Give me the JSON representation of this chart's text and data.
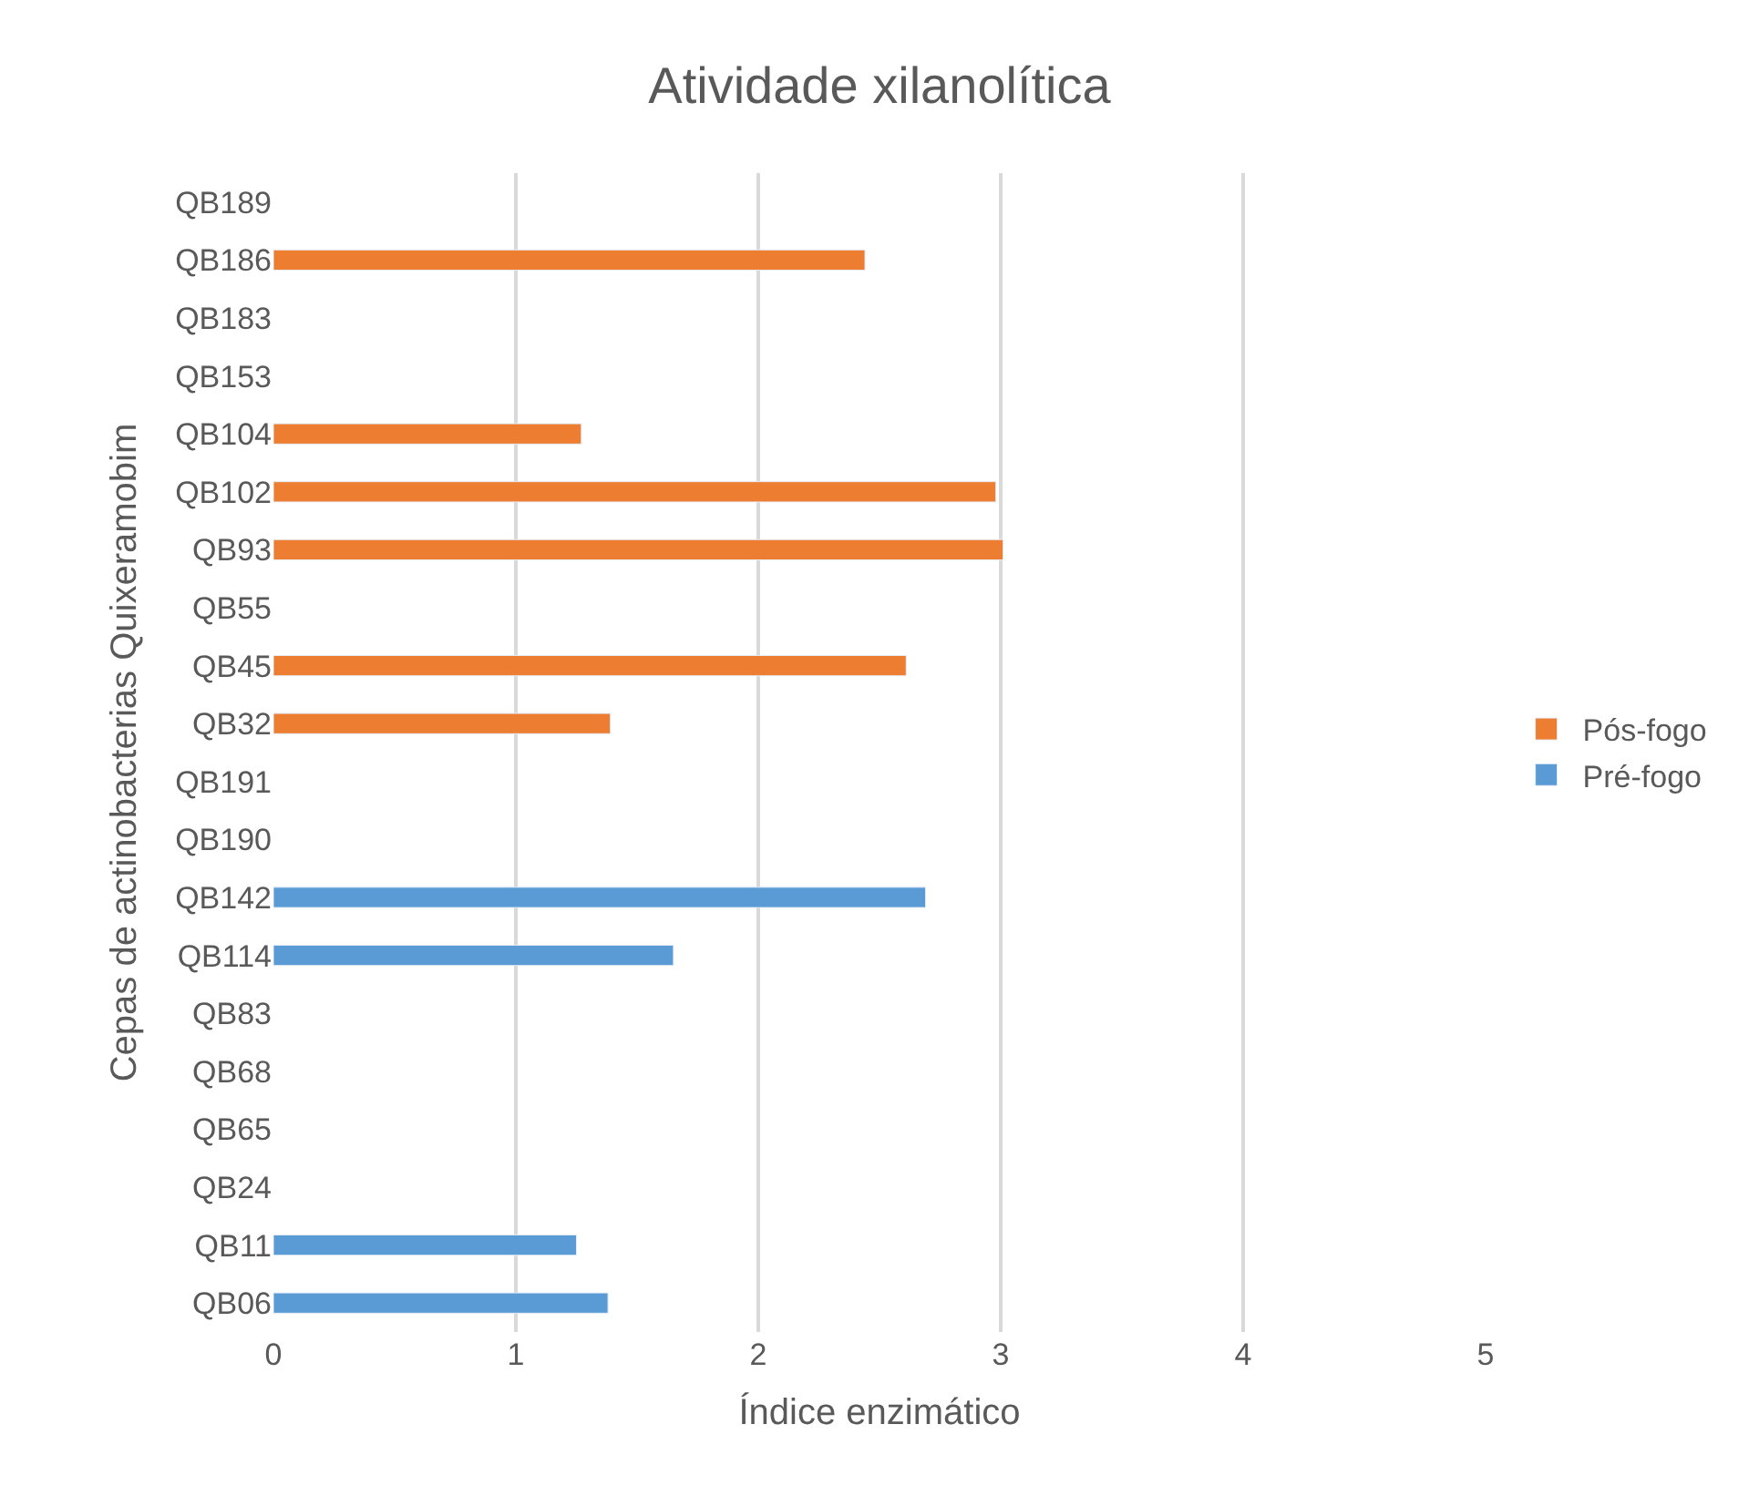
{
  "chart_data": {
    "type": "bar",
    "orientation": "horizontal",
    "title": "Atividade xilanolítica",
    "xlabel": "Índice enzimático",
    "ylabel": "Cepas de actinobacterias Quixeramobim",
    "categories": [
      "QB189",
      "QB186",
      "QB183",
      "QB153",
      "QB104",
      "QB102",
      "QB93",
      "QB55",
      "QB45",
      "QB32",
      "QB191",
      "QB190",
      "QB142",
      "QB114",
      "QB83",
      "QB68",
      "QB65",
      "QB24",
      "QB11",
      "QB06"
    ],
    "series": [
      {
        "name": "Pós-fogo",
        "color": "#ed7d31",
        "values": [
          null,
          2.44,
          null,
          null,
          1.27,
          2.98,
          3.01,
          null,
          2.61,
          1.39,
          null,
          null,
          null,
          null,
          null,
          null,
          null,
          null,
          null,
          null
        ]
      },
      {
        "name": "Pré-fogo",
        "color": "#5b9bd5",
        "values": [
          null,
          null,
          null,
          null,
          null,
          null,
          null,
          null,
          null,
          null,
          null,
          null,
          2.69,
          1.65,
          null,
          null,
          null,
          null,
          1.25,
          1.38
        ]
      }
    ],
    "xlim": [
      0,
      5
    ],
    "xticks": [
      0,
      1,
      2,
      3,
      4,
      5
    ],
    "grid": "x",
    "legend": "right"
  }
}
